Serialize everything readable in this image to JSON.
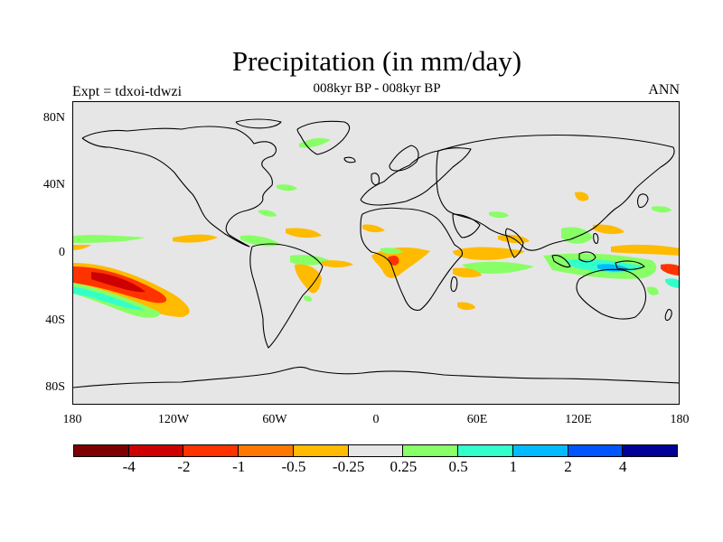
{
  "title": "Precipitation (in mm/day)",
  "subtitle": "008kyr BP - 008kyr BP",
  "left_label": "Expt = tdxoi-tdwzi",
  "right_label": "ANN",
  "lat_ticks": [
    {
      "label": "80N",
      "lat": 80
    },
    {
      "label": "40N",
      "lat": 40
    },
    {
      "label": "0",
      "lat": 0
    },
    {
      "label": "40S",
      "lat": -40
    },
    {
      "label": "80S",
      "lat": -80
    }
  ],
  "lon_ticks": [
    {
      "label": "180",
      "lon": -180
    },
    {
      "label": "120W",
      "lon": -120
    },
    {
      "label": "60W",
      "lon": -60
    },
    {
      "label": "0",
      "lon": 0
    },
    {
      "label": "60E",
      "lon": 60
    },
    {
      "label": "120E",
      "lon": 120
    },
    {
      "label": "180",
      "lon": 180
    }
  ],
  "colorbar": {
    "colors": [
      "#7f0000",
      "#cc0000",
      "#ff3300",
      "#ff7700",
      "#ffbb00",
      "#e6e6e6",
      "#88ff66",
      "#33ffcc",
      "#00bbff",
      "#0055ff",
      "#000099"
    ],
    "labels": [
      "-4",
      "-2",
      "-1",
      "-0.5",
      "-0.25",
      "0.25",
      "0.5",
      "1",
      "2",
      "4"
    ]
  },
  "colors": {
    "map_background": "#e6e6e6",
    "coastline": "#000000"
  }
}
